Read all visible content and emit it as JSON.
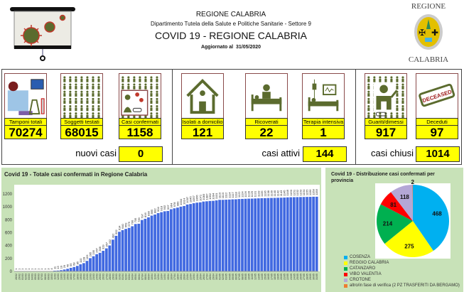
{
  "header": {
    "region": "REGIONE CALABRIA",
    "department": "Dipartimento Tutela della Salute e Politiche Sanitarie - Settore 9",
    "title": "COVID 19 - REGIONE CALABRIA",
    "updated_label": "Aggiornato al",
    "updated_date": "31/05/2020",
    "logo_top": "REGIONE",
    "logo_bottom": "CALABRIA"
  },
  "cards": [
    {
      "label": "Tamponi totali",
      "value": "70274",
      "icon": "lab-equipment-icon"
    },
    {
      "label": "Soggetti testati",
      "value": "68015",
      "icon": "people-grid-icon"
    },
    {
      "label": "Casi confermati",
      "value": "1158",
      "icon": "infected-person-icon"
    },
    {
      "label": "Isolati a domicilio",
      "value": "121",
      "icon": "house-icon"
    },
    {
      "label": "Ricoverati",
      "value": "22",
      "icon": "hospital-bed-icon"
    },
    {
      "label": "Terapia intensiva",
      "value": "1",
      "icon": "icu-bed-icon"
    },
    {
      "label": "Guariti/dimessi",
      "value": "917",
      "icon": "recovered-person-icon"
    },
    {
      "label": "Deceduti",
      "value": "97",
      "icon": "deceased-stamp-icon"
    }
  ],
  "summary": {
    "new_cases_label": "nuovi casi",
    "new_cases": "0",
    "active_label": "casi attivi",
    "active": "144",
    "closed_label": "casi chiusi",
    "closed": "1014"
  },
  "colors": {
    "accent": "#ffff00",
    "panel": "#c8e2b8",
    "bar": "#4169e1",
    "icon": "#5b6b2e"
  },
  "chart_data": [
    {
      "type": "bar",
      "title": "Covid 19 - Totale casi confermati in Regione Calabria",
      "xlabel": "",
      "ylabel": "",
      "ylim": [
        0,
        1300
      ],
      "yticks": [
        "0",
        "200",
        "400",
        "600",
        "800",
        "1000",
        "1200"
      ],
      "grid": false,
      "categories": [
        "28/02",
        "29/02",
        "01/03",
        "02/03",
        "03/03",
        "04/03",
        "05/03",
        "06/03",
        "07/03",
        "08/03",
        "09/03",
        "10/03",
        "11/03",
        "12/03",
        "13/03",
        "14/03",
        "15/03",
        "16/03",
        "17/03",
        "18/03",
        "19/03",
        "20/03",
        "21/03",
        "22/03",
        "23/03",
        "24/03",
        "25/03",
        "26/03",
        "27/03",
        "28/03",
        "29/03",
        "30/03",
        "31/03",
        "01/04",
        "02/04",
        "03/04",
        "04/04",
        "05/04",
        "06/04",
        "07/04",
        "08/04",
        "09/04",
        "10/04",
        "11/04",
        "12/04",
        "13/04",
        "14/04",
        "15/04",
        "16/04",
        "17/04",
        "18/04",
        "19/04",
        "20/04",
        "21/04",
        "22/04",
        "23/04",
        "24/04",
        "25/04",
        "26/04",
        "27/04",
        "28/04",
        "29/04",
        "30/04",
        "01/05",
        "02/05",
        "03/05",
        "04/05",
        "05/05",
        "06/05",
        "07/05",
        "08/05",
        "09/05",
        "10/05",
        "11/05",
        "12/05",
        "13/05",
        "14/05",
        "15/05",
        "16/05",
        "17/05",
        "18/05",
        "19/05",
        "20/05",
        "21/05",
        "22/05",
        "23/05",
        "24/05",
        "25/05",
        "26/05",
        "27/05",
        "28/05",
        "29/05",
        "30/05",
        "31/05"
      ],
      "values": [
        1,
        1,
        1,
        1,
        1,
        1,
        1,
        1,
        1,
        1,
        3,
        4,
        11,
        13,
        19,
        29,
        40,
        55,
        68,
        85,
        110,
        128,
        163,
        205,
        235,
        267,
        288,
        319,
        357,
        402,
        492,
        552,
        614,
        640,
        659,
        675,
        700,
        735,
        739,
        797,
        816,
        838,
        865,
        882,
        904,
        918,
        932,
        937,
        964,
        978,
        989,
        1004,
        1014,
        1037,
        1045,
        1057,
        1066,
        1071,
        1083,
        1087,
        1092,
        1094,
        1101,
        1110,
        1110,
        1112,
        1114,
        1117,
        1118,
        1122,
        1124,
        1126,
        1128,
        1129,
        1131,
        1133,
        1135,
        1136,
        1138,
        1139,
        1140,
        1142,
        1143,
        1145,
        1148,
        1150,
        1151,
        1152,
        1153,
        1154,
        1155,
        1156,
        1158,
        1158
      ]
    },
    {
      "type": "pie",
      "title": "Covid 19 - Distribuzione casi confermati per provincia",
      "slices": [
        {
          "name": "COSENZA",
          "value": 468,
          "color": "#00b0f0"
        },
        {
          "name": "REGGIO CALABRIA",
          "value": 275,
          "color": "#ffff00"
        },
        {
          "name": "CATANZARO",
          "value": 214,
          "color": "#00b050"
        },
        {
          "name": "VIBO VALENTIA",
          "value": 81,
          "color": "#ff0000"
        },
        {
          "name": "CROTONE",
          "value": 118,
          "color": "#b4a7d6"
        },
        {
          "name": "altro/in fase di verifica (2 PZ TRASFERITI DA BERGAMO)",
          "value": 2,
          "color": "#ed7d31"
        }
      ],
      "legend": "bottom-left"
    }
  ]
}
